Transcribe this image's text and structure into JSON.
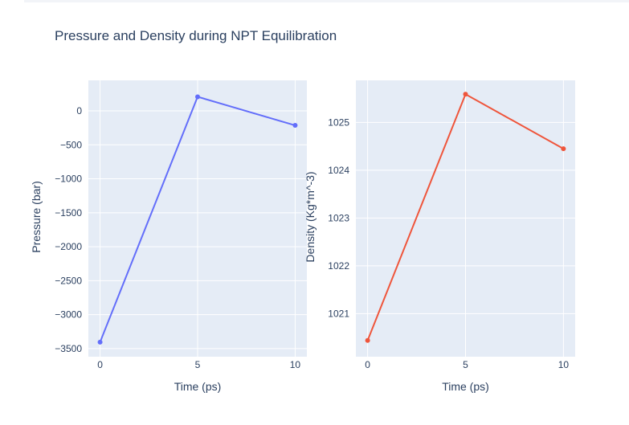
{
  "title": "Pressure and Density during NPT Equilibration",
  "colors": {
    "plot_bg": "#e5ecf6",
    "grid": "#ffffff",
    "text": "#2a3f5f",
    "pressure_line": "#636efa",
    "density_line": "#ef553b"
  },
  "chart_data": [
    {
      "type": "line",
      "xlabel": "Time (ps)",
      "ylabel": "Pressure (bar)",
      "x": [
        0,
        5,
        10
      ],
      "series": [
        {
          "values": [
            -3405,
            208,
            -213
          ]
        }
      ],
      "xlim": [
        -0.6,
        10.6
      ],
      "ylim": [
        -3620,
        450
      ],
      "xticks": [
        0,
        5,
        10
      ],
      "yticks": [
        0,
        -500,
        -1000,
        -1500,
        -2000,
        -2500,
        -3000,
        -3500
      ],
      "ytick_labels": [
        "0",
        "−500",
        "−1000",
        "−1500",
        "−2000",
        "−2500",
        "−3000",
        "−3500"
      ],
      "grid": true
    },
    {
      "type": "line",
      "xlabel": "Time (ps)",
      "ylabel": "Density (Kg*m^-3)",
      "x": [
        0,
        5,
        10
      ],
      "series": [
        {
          "values": [
            1020.44,
            1025.59,
            1024.45
          ]
        }
      ],
      "xlim": [
        -0.6,
        10.6
      ],
      "ylim": [
        1020.1,
        1025.88
      ],
      "xticks": [
        0,
        5,
        10
      ],
      "yticks": [
        1021,
        1022,
        1023,
        1024,
        1025
      ],
      "ytick_labels": [
        "1021",
        "1022",
        "1023",
        "1024",
        "1025"
      ],
      "grid": true
    }
  ]
}
